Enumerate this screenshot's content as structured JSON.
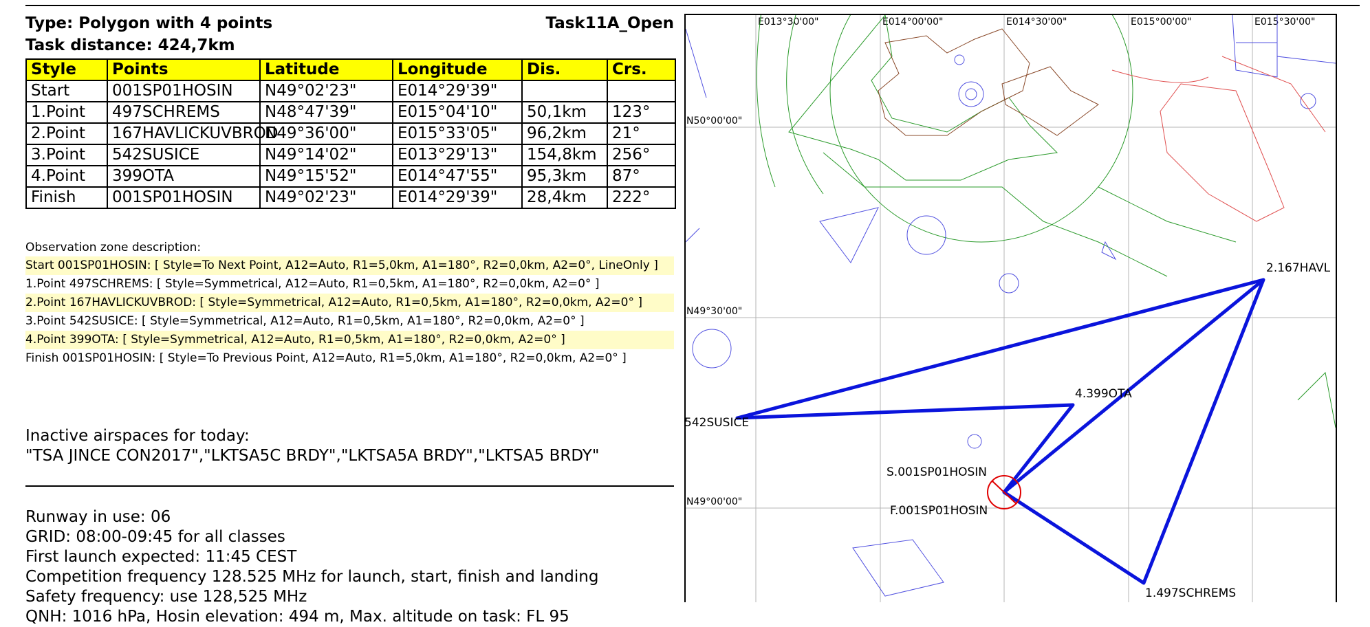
{
  "header": {
    "type": "Type: Polygon with 4 points",
    "task_name": "Task11A_Open",
    "distance": "Task distance: 424,7km"
  },
  "table": {
    "columns": [
      "Style",
      "Points",
      "Latitude",
      "Longitude",
      "Dis.",
      "Crs."
    ],
    "rows": [
      [
        "Start",
        "001SP01HOSIN",
        "N49°02'23\"",
        "E014°29'39\"",
        "",
        ""
      ],
      [
        "1.Point",
        "497SCHREMS",
        "N48°47'39\"",
        "E015°04'10\"",
        "50,1km",
        "123°"
      ],
      [
        "2.Point",
        "167HAVLICKUVBROD",
        "N49°36'00\"",
        "E015°33'05\"",
        "96,2km",
        "21°"
      ],
      [
        "3.Point",
        "542SUSICE",
        "N49°14'02\"",
        "E013°29'13\"",
        "154,8km",
        "256°"
      ],
      [
        "4.Point",
        "399OTA",
        "N49°15'52\"",
        "E014°47'55\"",
        "95,3km",
        "87°"
      ],
      [
        "Finish",
        "001SP01HOSIN",
        "N49°02'23\"",
        "E014°29'39\"",
        "28,4km",
        "222°"
      ]
    ]
  },
  "observation_zones": {
    "title": "Observation zone description:",
    "lines": [
      "Start 001SP01HOSIN: [ Style=To Next Point, A12=Auto, R1=5,0km, A1=180°, R2=0,0km, A2=0°, LineOnly ]",
      "1.Point 497SCHREMS: [ Style=Symmetrical, A12=Auto, R1=0,5km, A1=180°, R2=0,0km, A2=0° ]",
      "2.Point 167HAVLICKUVBROD: [ Style=Symmetrical, A12=Auto, R1=0,5km, A1=180°, R2=0,0km, A2=0° ]",
      "3.Point 542SUSICE: [ Style=Symmetrical, A12=Auto, R1=0,5km, A1=180°, R2=0,0km, A2=0° ]",
      "4.Point 399OTA: [ Style=Symmetrical, A12=Auto, R1=0,5km, A1=180°, R2=0,0km, A2=0° ]",
      "Finish 001SP01HOSIN: [ Style=To Previous Point, A12=Auto, R1=5,0km, A1=180°, R2=0,0km, A2=0° ]"
    ]
  },
  "inactive": {
    "title": "Inactive airspaces for today:",
    "list": "\"TSA JINCE CON2017\",\"LKTSA5C BRDY\",\"LKTSA5A BRDY\",\"LKTSA5 BRDY\""
  },
  "notes": [
    "Runway in use: 06",
    "GRID: 08:00-09:45 for all classes",
    "First launch expected: 11:45 CEST",
    "Competition frequency 128.525 MHz for launch, start, finish and landing",
    "Safety frequency: use 128,525 MHz",
    "QNH: 1016 hPa, Hosin elevation: 494 m, Max. altitude on task: FL 95"
  ],
  "map": {
    "lon_labels": [
      "E013°30'00\"",
      "E014°00'00\"",
      "E014°30'00\"",
      "E015°00'00\"",
      "E015°30'00\""
    ],
    "lat_labels": [
      "N50°00'00\"",
      "N49°30'00\"",
      "N49°00'00\""
    ],
    "waypoint_labels": {
      "havlickuv": "2.167HAVL",
      "susice": "542SUSICE",
      "ota": "4.399OTA",
      "start": "S.001SP01HOSIN",
      "finish": "F.001SP01HOSIN",
      "schrems": "1.497SCHREMS"
    },
    "colors": {
      "task_line": "#0a14dc",
      "grid": "#b4b4b4",
      "airspace_green": "#2a9a2a",
      "airspace_red": "#e05050",
      "airspace_blue": "#5050e0",
      "airspace_brown": "#8a4a2a",
      "zone": "#e00000"
    }
  }
}
